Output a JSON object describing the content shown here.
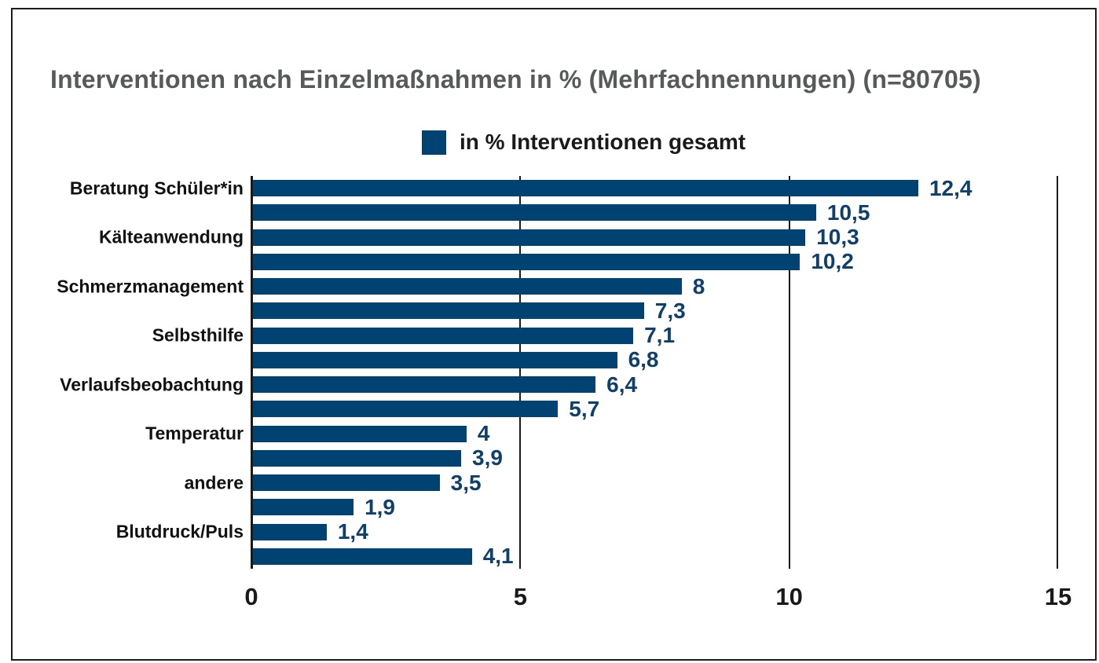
{
  "title": "Interventionen nach Einzelmaßnahmen in % (Mehrfachnennungen) (n=80705)",
  "legend": {
    "label": "in % Interventionen gesamt",
    "swatch_color": "#004271"
  },
  "colors": {
    "bar": "#004271",
    "value_label": "#0f406d",
    "title": "#58595b",
    "grid": "#1a1a1a"
  },
  "chart_data": {
    "type": "bar",
    "orientation": "horizontal",
    "title": "Interventionen nach Einzelmaßnahmen in % (Mehrfachnennungen) (n=80705)",
    "legend_entries": [
      "in % Interventionen gesamt"
    ],
    "xlabel": "",
    "ylabel": "",
    "xlim": [
      0,
      15
    ],
    "x_ticks": [
      0,
      5,
      10,
      15
    ],
    "grid": "vertical-lines-on",
    "legend_position": "top-center",
    "bars": [
      {
        "label": "Beratung Schüler*in",
        "value": 12.4,
        "display": "12,4"
      },
      {
        "label": "",
        "value": 10.5,
        "display": "10,5"
      },
      {
        "label": "Kälteanwendung",
        "value": 10.3,
        "display": "10,3"
      },
      {
        "label": "",
        "value": 10.2,
        "display": "10,2"
      },
      {
        "label": "Schmerzmanagement",
        "value": 8,
        "display": "8"
      },
      {
        "label": "",
        "value": 7.3,
        "display": "7,3"
      },
      {
        "label": "Selbsthilfe",
        "value": 7.1,
        "display": "7,1"
      },
      {
        "label": "",
        "value": 6.8,
        "display": "6,8"
      },
      {
        "label": "Verlaufsbeobachtung",
        "value": 6.4,
        "display": "6,4"
      },
      {
        "label": "",
        "value": 5.7,
        "display": "5,7"
      },
      {
        "label": "Temperatur",
        "value": 4,
        "display": "4"
      },
      {
        "label": "",
        "value": 3.9,
        "display": "3,9"
      },
      {
        "label": "andere",
        "value": 3.5,
        "display": "3,5"
      },
      {
        "label": "",
        "value": 1.9,
        "display": "1,9"
      },
      {
        "label": "Blutdruck/Puls",
        "value": 1.4,
        "display": "1,4"
      },
      {
        "label": "",
        "value": 4.1,
        "display": "4,1"
      }
    ]
  }
}
